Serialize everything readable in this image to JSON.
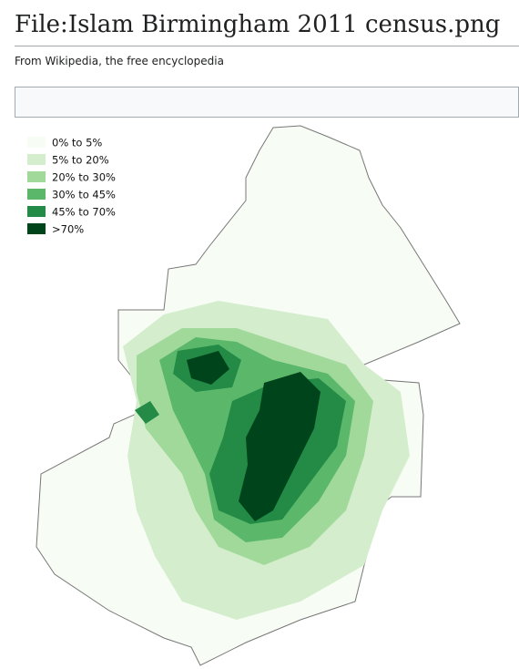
{
  "header": {
    "title": "File:Islam Birmingham 2011 census.png",
    "subtitle": "From Wikipedia, the free encyclopedia"
  },
  "legend": {
    "items": [
      {
        "label": "0% to 5%",
        "color": "#f7fcf5"
      },
      {
        "label": "5% to 20%",
        "color": "#d4eecd"
      },
      {
        "label": "20% to 30%",
        "color": "#a1d99b"
      },
      {
        "label": "30% to 45%",
        "color": "#5bb86a"
      },
      {
        "label": "45% to 70%",
        "color": "#238b45"
      },
      {
        "label": ">70%",
        "color": "#00441b"
      }
    ]
  }
}
